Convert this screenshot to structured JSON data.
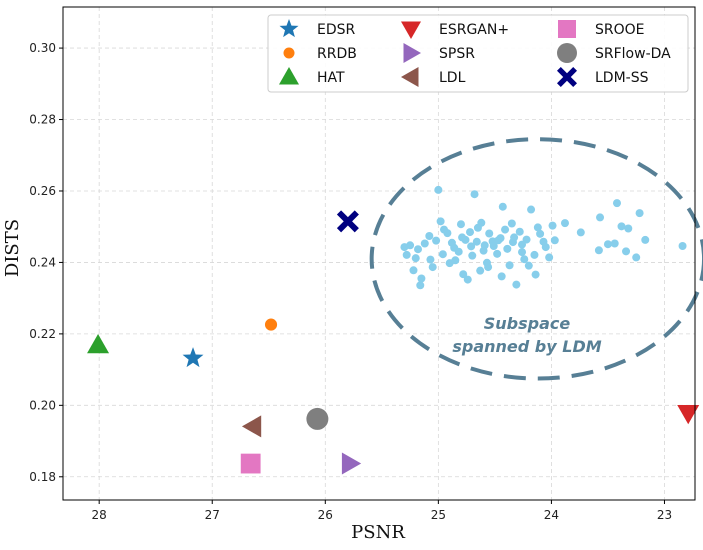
{
  "chart_data": {
    "type": "scatter",
    "xlabel": "PSNR",
    "ylabel": "DISTS",
    "xlim": [
      28.32,
      22.73
    ],
    "ylim": [
      0.1735,
      0.3115
    ],
    "x_reversed": true,
    "x_ticks": [
      28,
      27,
      26,
      25,
      24,
      23
    ],
    "y_ticks": [
      0.18,
      0.2,
      0.22,
      0.24,
      0.26,
      0.28,
      0.3
    ],
    "x_tick_labels": [
      "28",
      "27",
      "26",
      "25",
      "24",
      "23"
    ],
    "y_tick_labels": [
      "0.18",
      "0.20",
      "0.22",
      "0.24",
      "0.26",
      "0.28",
      "0.30"
    ],
    "grid": true,
    "legend_position": "top-right",
    "annotation": {
      "lines": [
        "Subspace",
        "spanned by LDM"
      ],
      "color": "#577f95",
      "ellipse": {
        "cx": 24.12,
        "cy": 0.241,
        "rx": 1.47,
        "ry": 0.0335
      }
    },
    "methods": [
      {
        "name": "EDSR",
        "x": 27.17,
        "y": 0.2132,
        "marker": "star",
        "color": "#1f77b4"
      },
      {
        "name": "RRDB",
        "x": 26.48,
        "y": 0.2226,
        "marker": "circle-small",
        "color": "#ff7f0e"
      },
      {
        "name": "HAT",
        "x": 28.01,
        "y": 0.2169,
        "marker": "triangle-up",
        "color": "#2ca02c"
      },
      {
        "name": "ESRGAN+",
        "x": 22.79,
        "y": 0.1978,
        "marker": "triangle-down",
        "color": "#d62728"
      },
      {
        "name": "SPSR",
        "x": 25.78,
        "y": 0.1837,
        "marker": "triangle-right",
        "color": "#9467bd"
      },
      {
        "name": "LDL",
        "x": 26.64,
        "y": 0.1941,
        "marker": "triangle-left",
        "color": "#8c564b"
      },
      {
        "name": "SROOE",
        "x": 26.66,
        "y": 0.1837,
        "marker": "square",
        "color": "#e377c2"
      },
      {
        "name": "SRFlow-DA",
        "x": 26.07,
        "y": 0.1962,
        "marker": "circle",
        "color": "#7f7f7f"
      },
      {
        "name": "LDM-SS",
        "x": 25.8,
        "y": 0.2515,
        "marker": "x-cross",
        "color": "#000080"
      }
    ],
    "ldm_samples": {
      "color": "#87ceeb",
      "points": [
        [
          25.0,
          0.2603
        ],
        [
          24.68,
          0.2591
        ],
        [
          24.43,
          0.2556
        ],
        [
          24.18,
          0.2548
        ],
        [
          23.42,
          0.2566
        ],
        [
          23.22,
          0.2538
        ],
        [
          23.57,
          0.2526
        ],
        [
          24.98,
          0.2515
        ],
        [
          24.62,
          0.2511
        ],
        [
          24.35,
          0.2509
        ],
        [
          23.88,
          0.251
        ],
        [
          23.99,
          0.2503
        ],
        [
          24.8,
          0.2507
        ],
        [
          25.08,
          0.2474
        ],
        [
          24.92,
          0.2482
        ],
        [
          24.72,
          0.2485
        ],
        [
          24.55,
          0.2481
        ],
        [
          24.28,
          0.2486
        ],
        [
          24.1,
          0.248
        ],
        [
          23.74,
          0.2484
        ],
        [
          23.38,
          0.2501
        ],
        [
          23.32,
          0.2495
        ],
        [
          25.3,
          0.2443
        ],
        [
          25.25,
          0.2448
        ],
        [
          25.18,
          0.2437
        ],
        [
          25.12,
          0.2453
        ],
        [
          25.02,
          0.2461
        ],
        [
          24.88,
          0.2455
        ],
        [
          24.76,
          0.2463
        ],
        [
          24.66,
          0.2458
        ],
        [
          24.52,
          0.2459
        ],
        [
          24.45,
          0.2468
        ],
        [
          24.34,
          0.2457
        ],
        [
          24.22,
          0.2464
        ],
        [
          24.07,
          0.2458
        ],
        [
          23.97,
          0.2462
        ],
        [
          23.5,
          0.2451
        ],
        [
          23.44,
          0.2453
        ],
        [
          23.17,
          0.2463
        ],
        [
          22.84,
          0.2446
        ],
        [
          25.28,
          0.2421
        ],
        [
          25.2,
          0.2412
        ],
        [
          25.07,
          0.2408
        ],
        [
          24.96,
          0.2423
        ],
        [
          24.82,
          0.243
        ],
        [
          24.7,
          0.2419
        ],
        [
          24.6,
          0.2433
        ],
        [
          24.48,
          0.2424
        ],
        [
          24.39,
          0.2438
        ],
        [
          24.26,
          0.2429
        ],
        [
          24.15,
          0.2421
        ],
        [
          24.02,
          0.2414
        ],
        [
          23.58,
          0.2434
        ],
        [
          23.34,
          0.2431
        ],
        [
          23.25,
          0.2414
        ],
        [
          25.22,
          0.2378
        ],
        [
          25.15,
          0.2355
        ],
        [
          25.05,
          0.2387
        ],
        [
          24.9,
          0.2398
        ],
        [
          24.78,
          0.2367
        ],
        [
          24.63,
          0.2377
        ],
        [
          24.57,
          0.2399
        ],
        [
          24.44,
          0.2361
        ],
        [
          24.37,
          0.2392
        ],
        [
          24.2,
          0.2391
        ],
        [
          24.14,
          0.2366
        ],
        [
          24.31,
          0.2338
        ],
        [
          24.74,
          0.2352
        ],
        [
          25.16,
          0.2336
        ],
        [
          24.56,
          0.2387
        ],
        [
          24.47,
          0.2462
        ],
        [
          24.59,
          0.2448
        ],
        [
          24.86,
          0.2441
        ],
        [
          24.26,
          0.245
        ],
        [
          24.79,
          0.247
        ],
        [
          24.71,
          0.2445
        ],
        [
          24.51,
          0.2446
        ],
        [
          24.33,
          0.247
        ],
        [
          24.05,
          0.2443
        ],
        [
          24.65,
          0.2497
        ],
        [
          24.41,
          0.2492
        ],
        [
          24.95,
          0.2492
        ],
        [
          24.12,
          0.2498
        ],
        [
          24.85,
          0.2406
        ],
        [
          24.24,
          0.2409
        ]
      ]
    }
  }
}
